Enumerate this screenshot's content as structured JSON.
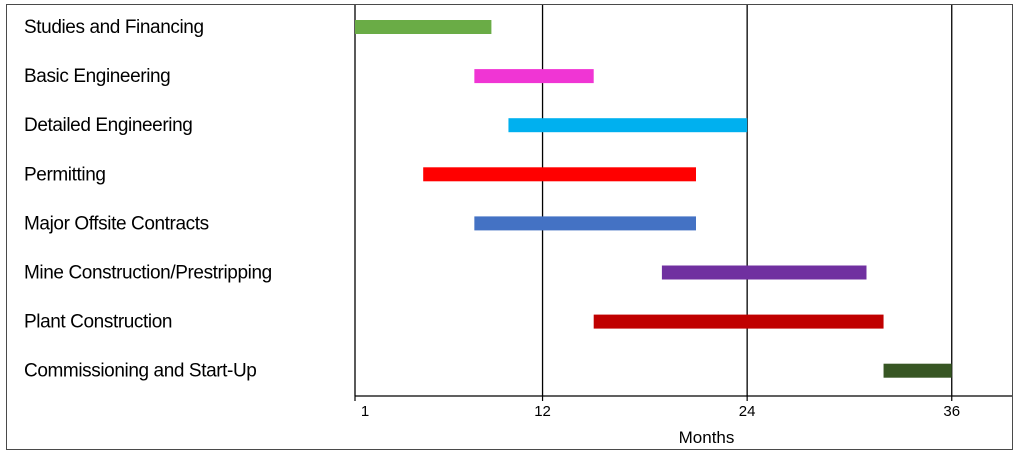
{
  "chart_data": {
    "type": "gantt",
    "title": "",
    "xlabel": "Months",
    "ylabel": "",
    "xlim": [
      1,
      39
    ],
    "xticks": [
      1,
      12,
      24,
      36
    ],
    "xtick_labels": [
      "1",
      "12",
      "24",
      "36"
    ],
    "grid": "vertical lines at 12, 24 and 36",
    "tasks": [
      {
        "label": "Studies and Financing",
        "start": 1,
        "end": 9,
        "color": "#6aac46"
      },
      {
        "label": "Basic Engineering",
        "start": 8,
        "end": 15,
        "color": "#f035d4"
      },
      {
        "label": "Detailed Engineering",
        "start": 10,
        "end": 24,
        "color": "#00b0ef"
      },
      {
        "label": "Permitting",
        "start": 5,
        "end": 21,
        "color": "#ff0000"
      },
      {
        "label": "Major Offsite Contracts",
        "start": 8,
        "end": 21,
        "color": "#4472c4"
      },
      {
        "label": "Mine Construction/Prestripping",
        "start": 19,
        "end": 31,
        "color": "#7030a0"
      },
      {
        "label": "Plant Construction",
        "start": 15,
        "end": 32,
        "color": "#c00000"
      },
      {
        "label": "Commissioning and Start-Up",
        "start": 32,
        "end": 36,
        "color": "#375623"
      }
    ]
  }
}
